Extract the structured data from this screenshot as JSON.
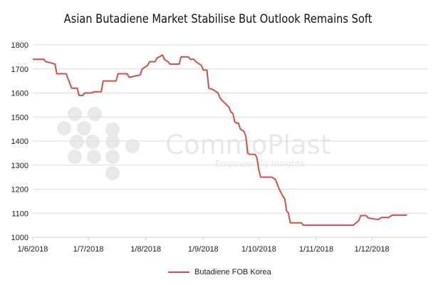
{
  "chart_data": {
    "type": "line",
    "title": "Asian Butadiene Market Stabilise But Outlook Remains Soft",
    "xlabel": "",
    "ylabel": "",
    "x_range": [
      "2018-06-01",
      "2018-12-31"
    ],
    "ylim": [
      1000,
      1800
    ],
    "y_ticks": [
      1000,
      1100,
      1200,
      1300,
      1400,
      1500,
      1600,
      1700,
      1800
    ],
    "x_ticks": [
      {
        "date": "2018-06-01",
        "label": "1/6/2018"
      },
      {
        "date": "2018-07-01",
        "label": "1/7/2018"
      },
      {
        "date": "2018-08-01",
        "label": "1/8/2018"
      },
      {
        "date": "2018-09-01",
        "label": "1/9/2018"
      },
      {
        "date": "2018-10-01",
        "label": "1/10/2018"
      },
      {
        "date": "2018-11-01",
        "label": "1/11/2018"
      },
      {
        "date": "2018-12-01",
        "label": "1/12/2018"
      }
    ],
    "grid": "horizontal",
    "legend_position": "bottom",
    "series": [
      {
        "name": "Butadiene FOB Korea",
        "color": "#d0504c",
        "points": [
          [
            "2018-06-01",
            1740
          ],
          [
            "2018-06-07",
            1740
          ],
          [
            "2018-06-08",
            1730
          ],
          [
            "2018-06-11",
            1725
          ],
          [
            "2018-06-13",
            1720
          ],
          [
            "2018-06-14",
            1680
          ],
          [
            "2018-06-19",
            1680
          ],
          [
            "2018-06-21",
            1640
          ],
          [
            "2018-06-22",
            1620
          ],
          [
            "2018-06-25",
            1620
          ],
          [
            "2018-06-26",
            1590
          ],
          [
            "2018-06-28",
            1590
          ],
          [
            "2018-06-29",
            1600
          ],
          [
            "2018-07-03",
            1600
          ],
          [
            "2018-07-04",
            1605
          ],
          [
            "2018-07-08",
            1605
          ],
          [
            "2018-07-09",
            1650
          ],
          [
            "2018-07-16",
            1650
          ],
          [
            "2018-07-17",
            1680
          ],
          [
            "2018-07-22",
            1680
          ],
          [
            "2018-07-23",
            1665
          ],
          [
            "2018-07-26",
            1670
          ],
          [
            "2018-07-29",
            1675
          ],
          [
            "2018-07-30",
            1700
          ],
          [
            "2018-08-02",
            1715
          ],
          [
            "2018-08-03",
            1730
          ],
          [
            "2018-08-06",
            1730
          ],
          [
            "2018-08-07",
            1745
          ],
          [
            "2018-08-10",
            1758
          ],
          [
            "2018-08-11",
            1740
          ],
          [
            "2018-08-13",
            1730
          ],
          [
            "2018-08-14",
            1720
          ],
          [
            "2018-08-19",
            1720
          ],
          [
            "2018-08-20",
            1750
          ],
          [
            "2018-08-24",
            1750
          ],
          [
            "2018-08-25",
            1740
          ],
          [
            "2018-08-27",
            1740
          ],
          [
            "2018-08-28",
            1730
          ],
          [
            "2018-08-29",
            1725
          ],
          [
            "2018-08-31",
            1715
          ],
          [
            "2018-09-01",
            1695
          ],
          [
            "2018-09-03",
            1695
          ],
          [
            "2018-09-04",
            1620
          ],
          [
            "2018-09-06",
            1615
          ],
          [
            "2018-09-07",
            1610
          ],
          [
            "2018-09-09",
            1600
          ],
          [
            "2018-09-10",
            1580
          ],
          [
            "2018-09-11",
            1570
          ],
          [
            "2018-09-13",
            1555
          ],
          [
            "2018-09-15",
            1540
          ],
          [
            "2018-09-16",
            1520
          ],
          [
            "2018-09-17",
            1515
          ],
          [
            "2018-09-18",
            1480
          ],
          [
            "2018-09-19",
            1475
          ],
          [
            "2018-09-20",
            1475
          ],
          [
            "2018-09-21",
            1450
          ],
          [
            "2018-09-23",
            1440
          ],
          [
            "2018-09-24",
            1420
          ],
          [
            "2018-09-25",
            1350
          ],
          [
            "2018-09-26",
            1345
          ],
          [
            "2018-09-29",
            1345
          ],
          [
            "2018-09-30",
            1330
          ],
          [
            "2018-10-01",
            1280
          ],
          [
            "2018-10-02",
            1250
          ],
          [
            "2018-10-08",
            1250
          ],
          [
            "2018-10-10",
            1240
          ],
          [
            "2018-10-12",
            1200
          ],
          [
            "2018-10-14",
            1170
          ],
          [
            "2018-10-15",
            1160
          ],
          [
            "2018-10-16",
            1110
          ],
          [
            "2018-10-17",
            1100
          ],
          [
            "2018-10-18",
            1060
          ],
          [
            "2018-10-24",
            1060
          ],
          [
            "2018-10-25",
            1050
          ],
          [
            "2018-11-21",
            1050
          ],
          [
            "2018-11-24",
            1070
          ],
          [
            "2018-11-25",
            1090
          ],
          [
            "2018-11-28",
            1090
          ],
          [
            "2018-11-29",
            1080
          ],
          [
            "2018-12-03",
            1075
          ],
          [
            "2018-12-05",
            1075
          ],
          [
            "2018-12-06",
            1082
          ],
          [
            "2018-12-10",
            1082
          ],
          [
            "2018-12-12",
            1092
          ],
          [
            "2018-12-20",
            1092
          ]
        ]
      }
    ]
  },
  "watermark": {
    "brand": "CommoPlast",
    "tagline": "Empowering Insights",
    "color": "#e9e9e9"
  }
}
